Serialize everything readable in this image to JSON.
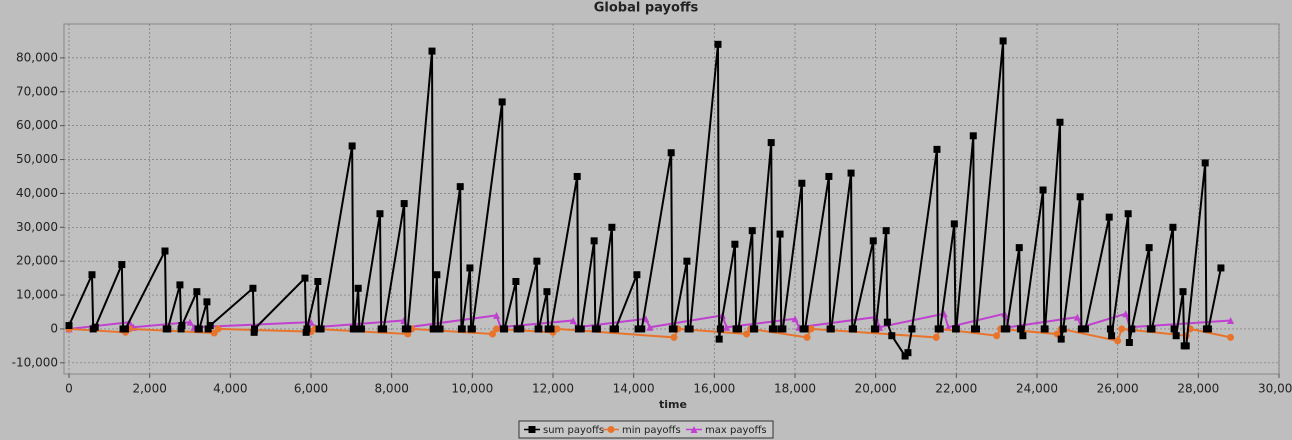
{
  "chart_data": {
    "type": "line",
    "title": "Global payoffs",
    "x_label": "time",
    "xlim": [
      -124,
      30000
    ],
    "ylim": [
      -13300,
      90000
    ],
    "xticks": [
      0,
      {
        "value": 2000,
        "label": "2,000"
      },
      {
        "value": 4000,
        "label": "4,000"
      },
      {
        "value": 6000,
        "label": "6,000"
      },
      {
        "value": 8000,
        "label": "8,000"
      },
      {
        "value": 10000,
        "label": "10,000"
      },
      {
        "value": 12000,
        "label": "12,000"
      },
      {
        "value": 14000,
        "label": "14,000"
      },
      {
        "value": 16000,
        "label": "16,000"
      },
      {
        "value": 18000,
        "label": "18,000"
      },
      {
        "value": 20000,
        "label": "20,000"
      },
      {
        "value": 22000,
        "label": "22,000"
      },
      {
        "value": 24000,
        "label": "24,000"
      },
      {
        "value": 26000,
        "label": "26,000"
      },
      {
        "value": 28000,
        "label": "28,000"
      },
      {
        "value": 30000,
        "label": "30,000"
      }
    ],
    "yticks": [
      {
        "value": -10000,
        "label": "-10,000"
      },
      0,
      {
        "value": 10000,
        "label": "10,000"
      },
      {
        "value": 20000,
        "label": "20,000"
      },
      {
        "value": 30000,
        "label": "30,000"
      },
      {
        "value": 40000,
        "label": "40,000"
      },
      {
        "value": 50000,
        "label": "50,000"
      },
      {
        "value": 60000,
        "label": "60,000"
      },
      {
        "value": 70000,
        "label": "70,000"
      },
      {
        "value": 80000,
        "label": "80,000"
      }
    ],
    "grid": true,
    "legend": "bottom",
    "series": [
      {
        "name": "sum payoffs",
        "color": "#000000",
        "marker": "square",
        "x": [
          0,
          570,
          600,
          650,
          1310,
          1340,
          1400,
          2380,
          2410,
          2450,
          2750,
          2780,
          2800,
          3170,
          3200,
          3230,
          3420,
          3450,
          3500,
          4560,
          4590,
          4600,
          5850,
          5880,
          5900,
          6170,
          6200,
          6250,
          7020,
          7050,
          7080,
          7170,
          7200,
          7250,
          7710,
          7740,
          7800,
          8310,
          8340,
          8400,
          9000,
          9030,
          9050,
          9120,
          9150,
          9200,
          9700,
          9730,
          9750,
          9940,
          9970,
          10000,
          10740,
          10770,
          10800,
          11080,
          11110,
          11200,
          11600,
          11630,
          11650,
          11850,
          11880,
          11950,
          12600,
          12630,
          12700,
          13020,
          13050,
          13100,
          13460,
          13490,
          13550,
          14080,
          14110,
          14200,
          14930,
          14960,
          15000,
          15320,
          15350,
          15400,
          16090,
          16120,
          16150,
          16510,
          16540,
          16600,
          16940,
          16970,
          17000,
          17410,
          17440,
          17480,
          17630,
          17660,
          17700,
          18170,
          18200,
          18250,
          18840,
          18870,
          18900,
          19390,
          19420,
          19450,
          19940,
          19970,
          20000,
          20260,
          20290,
          20400,
          20730,
          20800,
          20900,
          21520,
          21550,
          21600,
          21950,
          21980,
          22000,
          22420,
          22450,
          22500,
          23160,
          23190,
          23250,
          23560,
          23590,
          23650,
          24150,
          24180,
          24200,
          24570,
          24600,
          24650,
          25070,
          25100,
          25200,
          25790,
          25820,
          25850,
          26260,
          26290,
          26350,
          26780,
          26810,
          26850,
          27370,
          27400,
          27450,
          27620,
          27650,
          27700,
          28170,
          28200,
          28250,
          28560
        ],
        "values": [
          1000,
          16000,
          0,
          500,
          19000,
          0,
          0,
          23000,
          0,
          0,
          13000,
          0,
          1000,
          11000,
          0,
          0,
          8000,
          0,
          1000,
          12000,
          -1000,
          0,
          15000,
          -1000,
          0,
          14000,
          0,
          0,
          54000,
          0,
          0,
          12000,
          0,
          0,
          34000,
          0,
          0,
          37000,
          0,
          0,
          82000,
          0,
          0,
          16000,
          0,
          0,
          42000,
          0,
          0,
          18000,
          0,
          0,
          67000,
          0,
          0,
          14000,
          0,
          0,
          20000,
          0,
          0,
          11000,
          0,
          0,
          45000,
          0,
          0,
          26000,
          0,
          0,
          30000,
          0,
          0,
          16000,
          0,
          0,
          52000,
          0,
          0,
          20000,
          0,
          0,
          84000,
          -3000,
          0,
          25000,
          0,
          0,
          29000,
          0,
          0,
          55000,
          0,
          0,
          28000,
          0,
          0,
          43000,
          0,
          0,
          45000,
          0,
          0,
          46000,
          0,
          0,
          26000,
          0,
          0,
          29000,
          2000,
          -2000,
          -8000,
          -7000,
          0,
          53000,
          0,
          0,
          31000,
          0,
          0,
          57000,
          0,
          0,
          85000,
          0,
          0,
          24000,
          0,
          -2000,
          41000,
          0,
          0,
          61000,
          -3000,
          0,
          39000,
          0,
          0,
          33000,
          0,
          -2000,
          34000,
          -4000,
          0,
          24000,
          0,
          0,
          30000,
          0,
          -2000,
          11000,
          -5000,
          -5000,
          49000,
          0,
          0,
          18000
        ]
      },
      {
        "name": "min payoffs",
        "color": "#e8742c",
        "marker": "circle",
        "x": [
          0,
          1400,
          1500,
          3600,
          3700,
          6000,
          6100,
          8400,
          8500,
          10500,
          10600,
          12000,
          12100,
          15000,
          15100,
          16800,
          16900,
          18300,
          18400,
          21500,
          21600,
          23000,
          23100,
          24500,
          24600,
          26000,
          26100,
          27700,
          27800,
          28800
        ],
        "values": [
          0,
          -1000,
          0,
          -1200,
          0,
          -800,
          0,
          -1500,
          0,
          -1500,
          0,
          -1000,
          0,
          -2500,
          0,
          -1500,
          0,
          -2500,
          0,
          -2500,
          0,
          -2000,
          0,
          -1500,
          0,
          -3500,
          0,
          -2000,
          0,
          -2500
        ]
      },
      {
        "name": "max payoffs",
        "color": "#c040d0",
        "marker": "triangle",
        "x": [
          0,
          1500,
          1600,
          3000,
          3100,
          6000,
          6100,
          8300,
          8400,
          10600,
          10700,
          12500,
          12600,
          14300,
          14400,
          16200,
          16300,
          18000,
          18100,
          20000,
          20100,
          21700,
          21800,
          23200,
          23300,
          25000,
          25100,
          26200,
          26300,
          28800
        ],
        "values": [
          0,
          2000,
          500,
          2000,
          500,
          2000,
          500,
          2500,
          500,
          4000,
          500,
          2500,
          500,
          3000,
          500,
          4000,
          500,
          3000,
          500,
          3500,
          500,
          4500,
          500,
          4500,
          500,
          3500,
          500,
          4500,
          500,
          2500
        ]
      }
    ]
  }
}
